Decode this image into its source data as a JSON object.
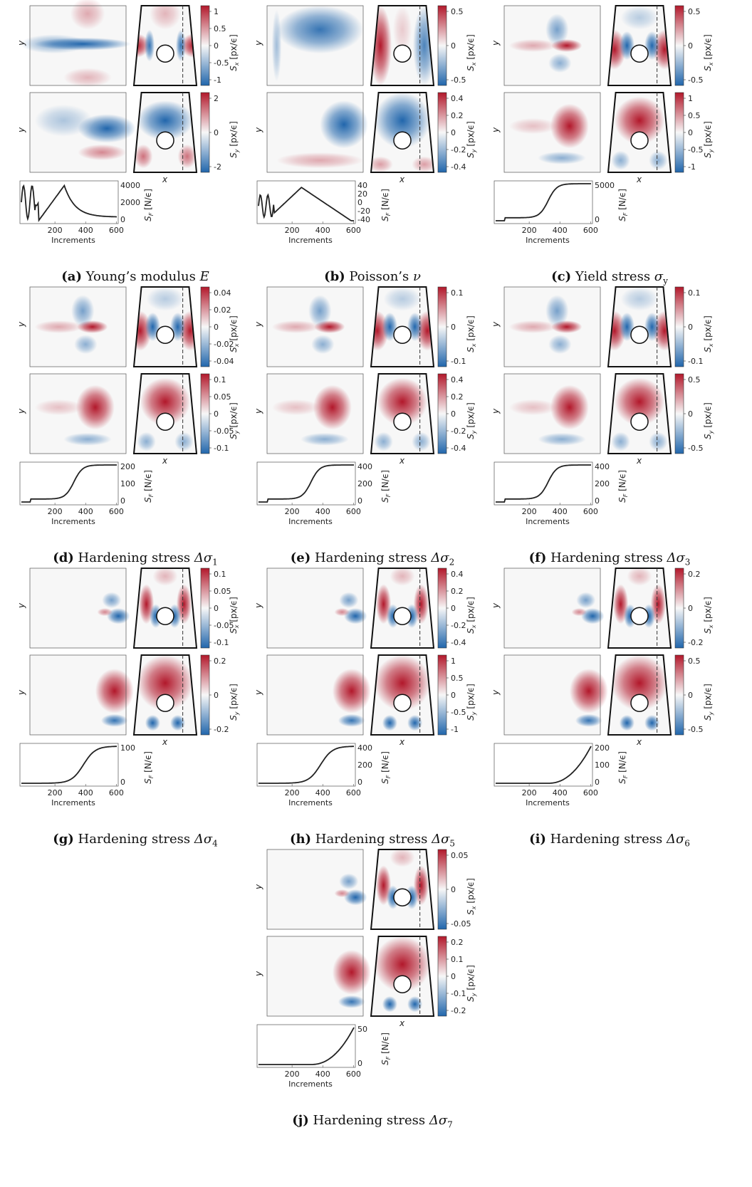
{
  "panels": [
    {
      "id": "a",
      "label": "(a)",
      "title": "Young’s modulus ",
      "sym": "E",
      "sub": "",
      "sx_ticks": [
        "1",
        "0.5",
        "0",
        "-0.5",
        "-1"
      ],
      "sy_ticks": [
        "2",
        "0",
        "-2"
      ],
      "sf_ticks": [
        "4000",
        "2000",
        "0"
      ],
      "curve": "oscillating-peak",
      "heat_sx": "young-x",
      "heat_sy": "young-y"
    },
    {
      "id": "b",
      "label": "(b)",
      "title": "Poisson’s ",
      "sym": "ν",
      "sub": "",
      "sx_ticks": [
        "0.5",
        "0",
        "-0.5"
      ],
      "sy_ticks": [
        "0.4",
        "0.2",
        "0",
        "-0.2",
        "-0.4"
      ],
      "sf_ticks": [
        "40",
        "20",
        "0",
        "-20",
        "-40"
      ],
      "curve": "oscillating-triangle",
      "heat_sx": "poisson-x",
      "heat_sy": "poisson-y"
    },
    {
      "id": "c",
      "label": "(c)",
      "title": "Yield stress ",
      "sym": "σ",
      "sub": "y",
      "sx_ticks": [
        "0.5",
        "0",
        "-0.5"
      ],
      "sy_ticks": [
        "1",
        "0.5",
        "0",
        "-0.5",
        "-1"
      ],
      "sf_ticks": [
        "5000",
        "0"
      ],
      "curve": "step-sigmoid",
      "heat_sx": "plastic-x",
      "heat_sy": "plastic-y"
    },
    {
      "id": "d",
      "label": "(d)",
      "title": "Hardening stress ",
      "sym": "Δσ",
      "sub": "1",
      "sx_ticks": [
        "0.04",
        "0.02",
        "0",
        "-0.02",
        "-0.04"
      ],
      "sy_ticks": [
        "0.1",
        "0.05",
        "0",
        "-0.05",
        "-0.1"
      ],
      "sf_ticks": [
        "200",
        "100",
        "0"
      ],
      "curve": "step-sigmoid",
      "heat_sx": "plastic-x",
      "heat_sy": "plastic-y"
    },
    {
      "id": "e",
      "label": "(e)",
      "title": "Hardening stress ",
      "sym": "Δσ",
      "sub": "2",
      "sx_ticks": [
        "0.1",
        "0",
        "-0.1"
      ],
      "sy_ticks": [
        "0.4",
        "0.2",
        "0",
        "-0.2",
        "-0.4"
      ],
      "sf_ticks": [
        "400",
        "200",
        "0"
      ],
      "curve": "step-sigmoid",
      "heat_sx": "plastic-x",
      "heat_sy": "plastic-y"
    },
    {
      "id": "f",
      "label": "(f)",
      "title": "Hardening stress ",
      "sym": "Δσ",
      "sub": "3",
      "sx_ticks": [
        "0.1",
        "0",
        "-0.1"
      ],
      "sy_ticks": [
        "0.5",
        "0",
        "-0.5"
      ],
      "sf_ticks": [
        "400",
        "200",
        "0"
      ],
      "curve": "step-sigmoid",
      "heat_sx": "plastic-x",
      "heat_sy": "plastic-y"
    },
    {
      "id": "g",
      "label": "(g)",
      "title": "Hardening stress ",
      "sym": "Δσ",
      "sub": "4",
      "sx_ticks": [
        "0.1",
        "0.05",
        "0",
        "-0.05",
        "-0.1"
      ],
      "sy_ticks": [
        "0.2",
        "0",
        "-0.2"
      ],
      "sf_ticks": [
        "100",
        "0"
      ],
      "curve": "late-sigmoid",
      "heat_sx": "late-x",
      "heat_sy": "late-y"
    },
    {
      "id": "h",
      "label": "(h)",
      "title": "Hardening stress ",
      "sym": "Δσ",
      "sub": "5",
      "sx_ticks": [
        "0.4",
        "0.2",
        "0",
        "-0.2",
        "-0.4"
      ],
      "sy_ticks": [
        "1",
        "0.5",
        "0",
        "-0.5",
        "-1"
      ],
      "sf_ticks": [
        "400",
        "200",
        "0"
      ],
      "curve": "late-sigmoid",
      "heat_sx": "late-x",
      "heat_sy": "late-y"
    },
    {
      "id": "i",
      "label": "(i)",
      "title": "Hardening stress ",
      "sym": "Δσ",
      "sub": "6",
      "sx_ticks": [
        "0.2",
        "0",
        "-0.2"
      ],
      "sy_ticks": [
        "0.5",
        "0",
        "-0.5"
      ],
      "sf_ticks": [
        "200",
        "100",
        "0"
      ],
      "curve": "exp-rise",
      "heat_sx": "late-x",
      "heat_sy": "late-y"
    },
    {
      "id": "j",
      "label": "(j)",
      "title": "Hardening stress ",
      "sym": "Δσ",
      "sub": "7",
      "sx_ticks": [
        "0.05",
        "0",
        "-0.05"
      ],
      "sy_ticks": [
        "0.2",
        "0.1",
        "0",
        "-0.1",
        "-0.2"
      ],
      "sf_ticks": [
        "50",
        "0"
      ],
      "curve": "exp-rise",
      "heat_sx": "late-x",
      "heat_sy": "late-y"
    }
  ],
  "labels": {
    "y_axis": "y",
    "x_axis": "x",
    "sx_label": "S",
    "sx_sub": "x",
    "sy_label": "S",
    "sy_sub": "y",
    "sens_unit": "[px/ϵ]",
    "sf_label": "S",
    "sf_sub": "F",
    "force_unit": "[N/ϵ]",
    "increments": "Increments",
    "inc_ticks": [
      "200",
      "400",
      "600"
    ]
  },
  "colors": {
    "positive": "#b2182b",
    "negative": "#2166ac",
    "neutral": "#f7f7f7",
    "line": "#222222"
  }
}
